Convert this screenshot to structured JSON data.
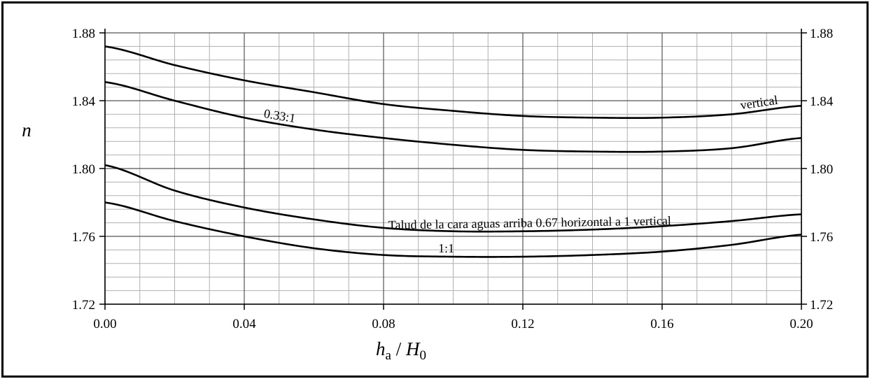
{
  "chart_data": {
    "type": "line",
    "title": "",
    "xlabel": {
      "main": "h",
      "sub": "a",
      "sep": " / ",
      "main2": "H",
      "sub2": "0"
    },
    "ylabel": "n",
    "xlim": [
      0.0,
      0.2
    ],
    "ylim": [
      1.72,
      1.88
    ],
    "x_ticks": [
      "0.00",
      "0.04",
      "0.08",
      "0.12",
      "0.16",
      "0.20"
    ],
    "y_ticks": [
      "1.72",
      "1.76",
      "1.80",
      "1.84",
      "1.88"
    ],
    "y_ticks_right": [
      "1.72",
      "1.76",
      "1.80",
      "1.84",
      "1.88"
    ],
    "grid": true,
    "grid_minor_x": 0.01,
    "grid_minor_y": 0.008,
    "line_color": "#000000",
    "series": [
      {
        "name": "vertical",
        "x": [
          0.0,
          0.02,
          0.04,
          0.06,
          0.08,
          0.1,
          0.12,
          0.14,
          0.16,
          0.18,
          0.2
        ],
        "y": [
          1.872,
          1.861,
          1.852,
          1.845,
          1.838,
          1.834,
          1.831,
          1.83,
          1.83,
          1.832,
          1.837
        ],
        "label_at": 0.188
      },
      {
        "name": "0.33:1",
        "x": [
          0.0,
          0.02,
          0.04,
          0.06,
          0.08,
          0.1,
          0.12,
          0.14,
          0.16,
          0.18,
          0.2
        ],
        "y": [
          1.851,
          1.84,
          1.83,
          1.823,
          1.818,
          1.814,
          1.811,
          1.81,
          1.81,
          1.812,
          1.818
        ],
        "label_at": 0.05
      },
      {
        "name": "Talud de la cara aguas arriba 0.67 horizontal a 1 vertical",
        "x": [
          0.0,
          0.02,
          0.04,
          0.06,
          0.08,
          0.1,
          0.12,
          0.14,
          0.16,
          0.18,
          0.2
        ],
        "y": [
          1.802,
          1.787,
          1.777,
          1.77,
          1.765,
          1.763,
          1.763,
          1.764,
          1.766,
          1.769,
          1.773
        ],
        "label_at": 0.122
      },
      {
        "name": "1:1",
        "x": [
          0.0,
          0.02,
          0.04,
          0.06,
          0.08,
          0.1,
          0.12,
          0.14,
          0.16,
          0.18,
          0.2
        ],
        "y": [
          1.78,
          1.769,
          1.76,
          1.753,
          1.749,
          1.748,
          1.748,
          1.749,
          1.751,
          1.755,
          1.761
        ],
        "label_at": 0.098
      }
    ]
  }
}
